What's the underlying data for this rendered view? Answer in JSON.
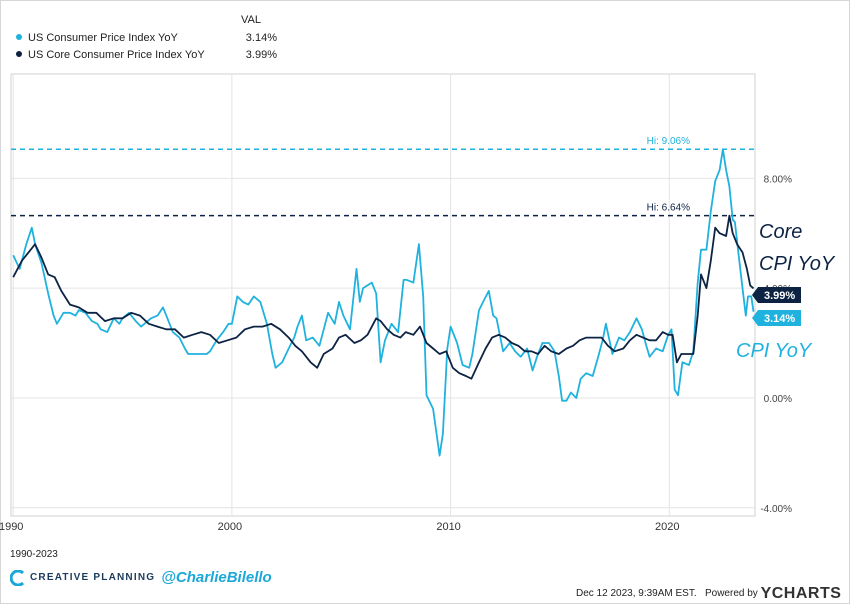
{
  "legend": {
    "header": "VAL",
    "items": [
      {
        "name": "US Consumer Price Index YoY",
        "value": "3.14%",
        "color": "#1fb2de"
      },
      {
        "name": "US Core Consumer Price Index YoY",
        "value": "3.99%",
        "color": "#0d2343"
      }
    ]
  },
  "annotations": {
    "hi_cpi": "Hi: 9.06%",
    "hi_core": "Hi: 6.64%",
    "core_line1": "Core",
    "core_line2": "CPI YoY",
    "cpi_label": "CPI YoY"
  },
  "end_labels": {
    "core": "3.99%",
    "cpi": "3.14%"
  },
  "footer": {
    "range": "1990-2023",
    "brand": "CREATIVE PLANNING",
    "handle": "@CharlieBilello",
    "timestamp": "Dec 12 2023, 9:39AM EST.",
    "powered": "Powered by",
    "provider": "YCHARTS"
  },
  "chart_data": {
    "type": "line",
    "title": "",
    "xlabel": "",
    "ylabel": "",
    "xlim": [
      1989.9,
      2023.92
    ],
    "ylim": [
      -4.3,
      11.8
    ],
    "x_ticks": [
      1990,
      2000,
      2010,
      2020
    ],
    "y_ticks": [
      -4,
      0,
      4,
      8
    ],
    "y_tick_labels": [
      "-4.00%",
      "0.00%",
      "4.00%",
      "8.00%"
    ],
    "grid": true,
    "legend_position": "top-left",
    "reference_lines": [
      {
        "label": "Hi: 9.06%",
        "value": 9.06,
        "series": "US Consumer Price Index YoY"
      },
      {
        "label": "Hi: 6.64%",
        "value": 6.64,
        "series": "US Core Consumer Price Index YoY"
      }
    ],
    "series": [
      {
        "name": "US Consumer Price Index YoY",
        "color": "#1fb2de",
        "points": [
          [
            1990.0,
            5.2
          ],
          [
            1990.3,
            4.7
          ],
          [
            1990.6,
            5.6
          ],
          [
            1990.85,
            6.2
          ],
          [
            1991.0,
            5.6
          ],
          [
            1991.3,
            4.9
          ],
          [
            1991.6,
            3.8
          ],
          [
            1991.85,
            3.0
          ],
          [
            1992.0,
            2.7
          ],
          [
            1992.3,
            3.1
          ],
          [
            1992.6,
            3.1
          ],
          [
            1992.85,
            3.0
          ],
          [
            1993.0,
            3.2
          ],
          [
            1993.3,
            3.1
          ],
          [
            1993.6,
            2.8
          ],
          [
            1993.85,
            2.7
          ],
          [
            1994.0,
            2.5
          ],
          [
            1994.3,
            2.4
          ],
          [
            1994.6,
            2.9
          ],
          [
            1994.85,
            2.7
          ],
          [
            1995.0,
            2.9
          ],
          [
            1995.3,
            3.1
          ],
          [
            1995.6,
            2.8
          ],
          [
            1995.85,
            2.6
          ],
          [
            1996.0,
            2.7
          ],
          [
            1996.3,
            2.9
          ],
          [
            1996.6,
            3.0
          ],
          [
            1996.85,
            3.3
          ],
          [
            1997.0,
            3.0
          ],
          [
            1997.3,
            2.4
          ],
          [
            1997.6,
            2.2
          ],
          [
            1997.85,
            1.8
          ],
          [
            1998.0,
            1.6
          ],
          [
            1998.3,
            1.6
          ],
          [
            1998.6,
            1.6
          ],
          [
            1998.85,
            1.6
          ],
          [
            1999.0,
            1.7
          ],
          [
            1999.3,
            2.1
          ],
          [
            1999.6,
            2.4
          ],
          [
            1999.85,
            2.7
          ],
          [
            2000.0,
            2.7
          ],
          [
            2000.25,
            3.7
          ],
          [
            2000.5,
            3.5
          ],
          [
            2000.75,
            3.4
          ],
          [
            2001.0,
            3.7
          ],
          [
            2001.3,
            3.5
          ],
          [
            2001.6,
            2.7
          ],
          [
            2001.85,
            1.6
          ],
          [
            2002.0,
            1.1
          ],
          [
            2002.3,
            1.3
          ],
          [
            2002.6,
            1.8
          ],
          [
            2002.85,
            2.2
          ],
          [
            2003.0,
            2.6
          ],
          [
            2003.2,
            3.0
          ],
          [
            2003.4,
            2.1
          ],
          [
            2003.7,
            2.2
          ],
          [
            2004.0,
            1.9
          ],
          [
            2004.4,
            3.1
          ],
          [
            2004.7,
            2.7
          ],
          [
            2004.9,
            3.5
          ],
          [
            2005.1,
            3.0
          ],
          [
            2005.4,
            2.5
          ],
          [
            2005.7,
            4.7
          ],
          [
            2005.85,
            3.5
          ],
          [
            2006.0,
            4.0
          ],
          [
            2006.4,
            4.2
          ],
          [
            2006.6,
            3.8
          ],
          [
            2006.8,
            1.3
          ],
          [
            2007.0,
            2.1
          ],
          [
            2007.3,
            2.7
          ],
          [
            2007.6,
            2.4
          ],
          [
            2007.85,
            4.3
          ],
          [
            2008.0,
            4.3
          ],
          [
            2008.3,
            4.2
          ],
          [
            2008.55,
            5.6
          ],
          [
            2008.75,
            3.7
          ],
          [
            2008.9,
            0.1
          ],
          [
            2009.2,
            -0.4
          ],
          [
            2009.5,
            -2.1
          ],
          [
            2009.65,
            -1.3
          ],
          [
            2009.85,
            1.8
          ],
          [
            2010.0,
            2.6
          ],
          [
            2010.3,
            2.0
          ],
          [
            2010.55,
            1.2
          ],
          [
            2010.85,
            1.1
          ],
          [
            2011.0,
            1.6
          ],
          [
            2011.3,
            3.2
          ],
          [
            2011.55,
            3.6
          ],
          [
            2011.75,
            3.9
          ],
          [
            2011.95,
            3.0
          ],
          [
            2012.1,
            2.9
          ],
          [
            2012.4,
            1.7
          ],
          [
            2012.7,
            2.0
          ],
          [
            2012.95,
            1.7
          ],
          [
            2013.2,
            1.5
          ],
          [
            2013.5,
            1.8
          ],
          [
            2013.75,
            1.0
          ],
          [
            2013.95,
            1.5
          ],
          [
            2014.2,
            2.0
          ],
          [
            2014.5,
            2.0
          ],
          [
            2014.75,
            1.7
          ],
          [
            2014.95,
            0.8
          ],
          [
            2015.1,
            -0.1
          ],
          [
            2015.3,
            -0.1
          ],
          [
            2015.5,
            0.2
          ],
          [
            2015.75,
            0.0
          ],
          [
            2015.95,
            0.7
          ],
          [
            2016.2,
            0.9
          ],
          [
            2016.5,
            0.8
          ],
          [
            2016.75,
            1.5
          ],
          [
            2016.95,
            2.1
          ],
          [
            2017.1,
            2.7
          ],
          [
            2017.4,
            1.6
          ],
          [
            2017.7,
            2.2
          ],
          [
            2017.95,
            2.1
          ],
          [
            2018.2,
            2.4
          ],
          [
            2018.5,
            2.9
          ],
          [
            2018.75,
            2.5
          ],
          [
            2018.95,
            1.9
          ],
          [
            2019.1,
            1.5
          ],
          [
            2019.4,
            1.8
          ],
          [
            2019.7,
            1.7
          ],
          [
            2019.95,
            2.3
          ],
          [
            2020.1,
            2.5
          ],
          [
            2020.25,
            0.3
          ],
          [
            2020.4,
            0.1
          ],
          [
            2020.6,
            1.3
          ],
          [
            2020.9,
            1.2
          ],
          [
            2021.1,
            1.7
          ],
          [
            2021.3,
            4.2
          ],
          [
            2021.45,
            5.4
          ],
          [
            2021.7,
            5.4
          ],
          [
            2021.9,
            6.8
          ],
          [
            2022.1,
            7.9
          ],
          [
            2022.3,
            8.3
          ],
          [
            2022.45,
            9.06
          ],
          [
            2022.6,
            8.3
          ],
          [
            2022.75,
            7.7
          ],
          [
            2022.9,
            6.5
          ],
          [
            2023.0,
            6.4
          ],
          [
            2023.2,
            5.0
          ],
          [
            2023.35,
            4.0
          ],
          [
            2023.5,
            3.0
          ],
          [
            2023.6,
            3.7
          ],
          [
            2023.75,
            3.7
          ],
          [
            2023.85,
            3.14
          ]
        ]
      },
      {
        "name": "US Core Consumer Price Index YoY",
        "color": "#0d2343",
        "points": [
          [
            1990.0,
            4.4
          ],
          [
            1990.4,
            5.0
          ],
          [
            1990.8,
            5.4
          ],
          [
            1991.0,
            5.6
          ],
          [
            1991.3,
            5.1
          ],
          [
            1991.6,
            4.5
          ],
          [
            1991.9,
            4.4
          ],
          [
            1992.2,
            3.9
          ],
          [
            1992.6,
            3.4
          ],
          [
            1993.0,
            3.3
          ],
          [
            1993.4,
            3.1
          ],
          [
            1993.8,
            3.1
          ],
          [
            1994.2,
            2.8
          ],
          [
            1994.6,
            2.9
          ],
          [
            1995.0,
            2.9
          ],
          [
            1995.4,
            3.1
          ],
          [
            1995.8,
            3.0
          ],
          [
            1996.2,
            2.7
          ],
          [
            1996.6,
            2.6
          ],
          [
            1997.0,
            2.5
          ],
          [
            1997.4,
            2.5
          ],
          [
            1997.8,
            2.2
          ],
          [
            1998.2,
            2.3
          ],
          [
            1998.6,
            2.4
          ],
          [
            1999.0,
            2.3
          ],
          [
            1999.4,
            2.0
          ],
          [
            1999.8,
            2.1
          ],
          [
            2000.2,
            2.2
          ],
          [
            2000.6,
            2.5
          ],
          [
            2001.0,
            2.6
          ],
          [
            2001.4,
            2.6
          ],
          [
            2001.8,
            2.7
          ],
          [
            2002.2,
            2.5
          ],
          [
            2002.6,
            2.2
          ],
          [
            2002.9,
            1.9
          ],
          [
            2003.2,
            1.7
          ],
          [
            2003.6,
            1.3
          ],
          [
            2003.9,
            1.1
          ],
          [
            2004.2,
            1.6
          ],
          [
            2004.6,
            1.8
          ],
          [
            2004.9,
            2.2
          ],
          [
            2005.2,
            2.3
          ],
          [
            2005.6,
            2.0
          ],
          [
            2005.9,
            2.1
          ],
          [
            2006.2,
            2.3
          ],
          [
            2006.6,
            2.9
          ],
          [
            2006.8,
            2.8
          ],
          [
            2007.1,
            2.5
          ],
          [
            2007.4,
            2.3
          ],
          [
            2007.7,
            2.2
          ],
          [
            2007.95,
            2.4
          ],
          [
            2008.3,
            2.3
          ],
          [
            2008.6,
            2.6
          ],
          [
            2008.9,
            2.0
          ],
          [
            2009.2,
            1.8
          ],
          [
            2009.5,
            1.6
          ],
          [
            2009.8,
            1.7
          ],
          [
            2010.1,
            1.1
          ],
          [
            2010.4,
            0.9
          ],
          [
            2010.7,
            0.8
          ],
          [
            2010.95,
            0.7
          ],
          [
            2011.3,
            1.3
          ],
          [
            2011.6,
            1.8
          ],
          [
            2011.9,
            2.2
          ],
          [
            2012.2,
            2.3
          ],
          [
            2012.5,
            2.2
          ],
          [
            2012.8,
            2.0
          ],
          [
            2013.1,
            1.9
          ],
          [
            2013.4,
            1.7
          ],
          [
            2013.7,
            1.7
          ],
          [
            2014.0,
            1.6
          ],
          [
            2014.3,
            1.9
          ],
          [
            2014.6,
            1.7
          ],
          [
            2014.95,
            1.6
          ],
          [
            2015.3,
            1.8
          ],
          [
            2015.6,
            1.9
          ],
          [
            2015.9,
            2.1
          ],
          [
            2016.2,
            2.2
          ],
          [
            2016.6,
            2.2
          ],
          [
            2016.9,
            2.2
          ],
          [
            2017.2,
            1.9
          ],
          [
            2017.5,
            1.7
          ],
          [
            2017.9,
            1.8
          ],
          [
            2018.2,
            2.1
          ],
          [
            2018.5,
            2.3
          ],
          [
            2018.8,
            2.2
          ],
          [
            2019.1,
            2.1
          ],
          [
            2019.4,
            2.1
          ],
          [
            2019.7,
            2.4
          ],
          [
            2019.95,
            2.3
          ],
          [
            2020.15,
            2.3
          ],
          [
            2020.35,
            1.3
          ],
          [
            2020.55,
            1.6
          ],
          [
            2020.85,
            1.6
          ],
          [
            2021.1,
            1.6
          ],
          [
            2021.3,
            3.0
          ],
          [
            2021.45,
            4.5
          ],
          [
            2021.7,
            4.0
          ],
          [
            2021.9,
            5.0
          ],
          [
            2022.1,
            6.2
          ],
          [
            2022.3,
            6.0
          ],
          [
            2022.6,
            5.9
          ],
          [
            2022.75,
            6.64
          ],
          [
            2022.9,
            6.0
          ],
          [
            2023.1,
            5.6
          ],
          [
            2023.35,
            5.3
          ],
          [
            2023.55,
            4.7
          ],
          [
            2023.7,
            4.1
          ],
          [
            2023.85,
            3.99
          ]
        ]
      }
    ]
  }
}
